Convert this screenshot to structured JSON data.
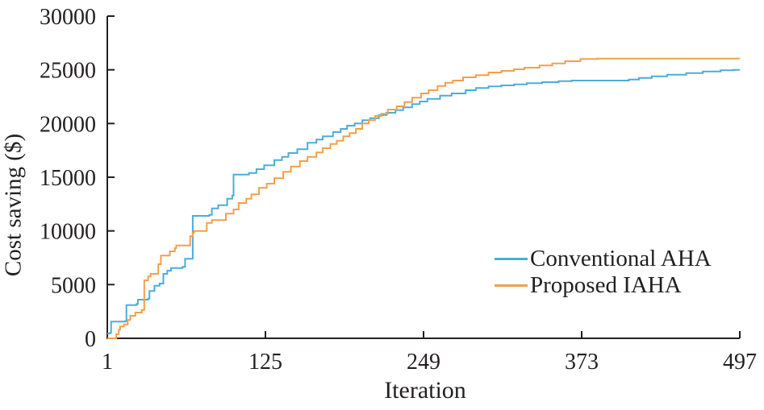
{
  "chart_data": {
    "type": "line",
    "title": "",
    "xlabel": "Iteration",
    "ylabel": "Cost saving ($)",
    "xlim": [
      1,
      497
    ],
    "ylim": [
      0,
      30000
    ],
    "x_ticks": [
      1,
      125,
      249,
      373,
      497
    ],
    "y_ticks": [
      0,
      5000,
      10000,
      15000,
      20000,
      25000,
      30000
    ],
    "grid": false,
    "interpolation": "step-after",
    "legend_position": "right-middle-inside",
    "axis_color": "#231f20",
    "series": [
      {
        "name": "Conventional AHA",
        "color": "#4badd9",
        "points": [
          [
            1,
            450
          ],
          [
            3,
            500
          ],
          [
            4,
            1550
          ],
          [
            15,
            1600
          ],
          [
            16,
            3100
          ],
          [
            24,
            3200
          ],
          [
            25,
            3600
          ],
          [
            33,
            3700
          ],
          [
            34,
            4400
          ],
          [
            38,
            4900
          ],
          [
            42,
            5100
          ],
          [
            45,
            6000
          ],
          [
            48,
            6300
          ],
          [
            51,
            6550
          ],
          [
            60,
            6650
          ],
          [
            62,
            7400
          ],
          [
            68,
            11400
          ],
          [
            81,
            11500
          ],
          [
            83,
            12100
          ],
          [
            88,
            12400
          ],
          [
            95,
            13000
          ],
          [
            99,
            13300
          ],
          [
            100,
            15250
          ],
          [
            112,
            15400
          ],
          [
            118,
            15750
          ],
          [
            124,
            16100
          ],
          [
            132,
            16600
          ],
          [
            138,
            16900
          ],
          [
            143,
            17250
          ],
          [
            150,
            17600
          ],
          [
            158,
            18200
          ],
          [
            165,
            18500
          ],
          [
            170,
            18800
          ],
          [
            178,
            19200
          ],
          [
            184,
            19500
          ],
          [
            189,
            19800
          ],
          [
            195,
            20000
          ],
          [
            201,
            20300
          ],
          [
            207,
            20500
          ],
          [
            214,
            20800
          ],
          [
            220,
            21000
          ],
          [
            227,
            21250
          ],
          [
            233,
            21500
          ],
          [
            240,
            21800
          ],
          [
            246,
            22050
          ],
          [
            252,
            22300
          ],
          [
            262,
            22600
          ],
          [
            271,
            22800
          ],
          [
            282,
            23100
          ],
          [
            290,
            23300
          ],
          [
            300,
            23450
          ],
          [
            310,
            23550
          ],
          [
            320,
            23650
          ],
          [
            330,
            23750
          ],
          [
            342,
            23850
          ],
          [
            355,
            23950
          ],
          [
            365,
            24000
          ],
          [
            410,
            24100
          ],
          [
            418,
            24250
          ],
          [
            428,
            24400
          ],
          [
            440,
            24550
          ],
          [
            455,
            24700
          ],
          [
            468,
            24850
          ],
          [
            482,
            24950
          ],
          [
            492,
            25000
          ],
          [
            497,
            25000
          ]
        ]
      },
      {
        "name": "Proposed IAHA",
        "color": "#f2a04a",
        "points": [
          [
            1,
            0
          ],
          [
            8,
            400
          ],
          [
            10,
            800
          ],
          [
            11,
            1100
          ],
          [
            14,
            1300
          ],
          [
            17,
            1700
          ],
          [
            19,
            2100
          ],
          [
            23,
            2400
          ],
          [
            28,
            2650
          ],
          [
            30,
            5400
          ],
          [
            33,
            5750
          ],
          [
            35,
            6000
          ],
          [
            41,
            6900
          ],
          [
            43,
            7700
          ],
          [
            50,
            8100
          ],
          [
            54,
            8400
          ],
          [
            55,
            8650
          ],
          [
            66,
            9500
          ],
          [
            68,
            9800
          ],
          [
            69,
            10000
          ],
          [
            79,
            10750
          ],
          [
            83,
            11000
          ],
          [
            94,
            11600
          ],
          [
            100,
            12000
          ],
          [
            104,
            12600
          ],
          [
            110,
            13000
          ],
          [
            114,
            13400
          ],
          [
            120,
            14000
          ],
          [
            126,
            14400
          ],
          [
            132,
            14900
          ],
          [
            139,
            15500
          ],
          [
            145,
            16000
          ],
          [
            152,
            16500
          ],
          [
            158,
            16900
          ],
          [
            165,
            17300
          ],
          [
            170,
            17700
          ],
          [
            176,
            18100
          ],
          [
            181,
            18400
          ],
          [
            186,
            18800
          ],
          [
            191,
            19100
          ],
          [
            196,
            19500
          ],
          [
            201,
            20000
          ],
          [
            206,
            20300
          ],
          [
            211,
            20700
          ],
          [
            216,
            20900
          ],
          [
            221,
            21300
          ],
          [
            228,
            21600
          ],
          [
            234,
            22000
          ],
          [
            240,
            22400
          ],
          [
            247,
            22800
          ],
          [
            253,
            23100
          ],
          [
            260,
            23500
          ],
          [
            266,
            23800
          ],
          [
            272,
            24000
          ],
          [
            280,
            24300
          ],
          [
            290,
            24500
          ],
          [
            300,
            24750
          ],
          [
            310,
            24900
          ],
          [
            320,
            25050
          ],
          [
            328,
            25200
          ],
          [
            340,
            25400
          ],
          [
            350,
            25600
          ],
          [
            360,
            25800
          ],
          [
            372,
            26000
          ],
          [
            385,
            26050
          ],
          [
            497,
            26050
          ]
        ]
      }
    ]
  }
}
